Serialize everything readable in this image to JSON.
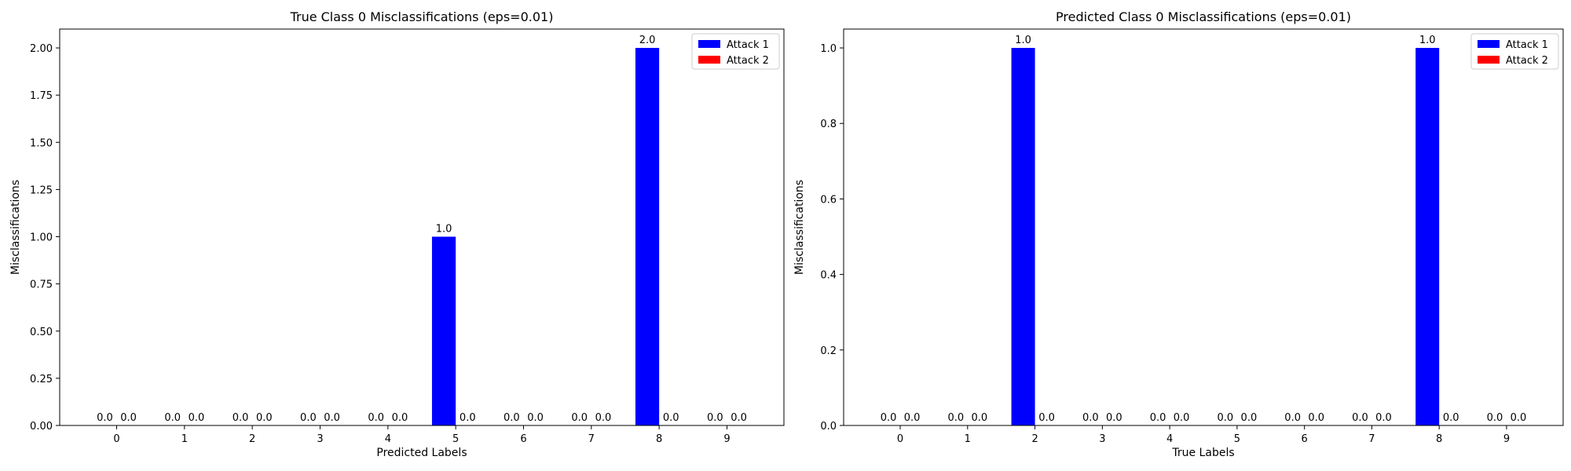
{
  "chart_data": [
    {
      "type": "bar",
      "title": "True Class 0 Misclassifications (eps=0.01)",
      "xlabel": "Predicted Labels",
      "ylabel": "Misclassifications",
      "categories": [
        "0",
        "1",
        "2",
        "3",
        "4",
        "5",
        "6",
        "7",
        "8",
        "9"
      ],
      "series": [
        {
          "name": "Attack 1",
          "color": "#0000ff",
          "values": [
            0,
            0,
            0,
            0,
            0,
            1,
            0,
            0,
            2,
            0
          ]
        },
        {
          "name": "Attack 2",
          "color": "#ff0000",
          "values": [
            0,
            0,
            0,
            0,
            0,
            0,
            0,
            0,
            0,
            0
          ]
        }
      ],
      "ylim": [
        0,
        2.1
      ],
      "yticks": [
        "0.00",
        "0.25",
        "0.50",
        "0.75",
        "1.00",
        "1.25",
        "1.50",
        "1.75",
        "2.00"
      ],
      "ytick_values": [
        0,
        0.25,
        0.5,
        0.75,
        1.0,
        1.25,
        1.5,
        1.75,
        2.0
      ],
      "legend": "top-right",
      "grid": false
    },
    {
      "type": "bar",
      "title": "Predicted Class 0 Misclassifications (eps=0.01)",
      "xlabel": "True Labels",
      "ylabel": "Misclassifications",
      "categories": [
        "0",
        "1",
        "2",
        "3",
        "4",
        "5",
        "6",
        "7",
        "8",
        "9"
      ],
      "series": [
        {
          "name": "Attack 1",
          "color": "#0000ff",
          "values": [
            0,
            0,
            1,
            0,
            0,
            0,
            0,
            0,
            1,
            0
          ]
        },
        {
          "name": "Attack 2",
          "color": "#ff0000",
          "values": [
            0,
            0,
            0,
            0,
            0,
            0,
            0,
            0,
            0,
            0
          ]
        }
      ],
      "ylim": [
        0,
        1.05
      ],
      "yticks": [
        "0.0",
        "0.2",
        "0.4",
        "0.6",
        "0.8",
        "1.0"
      ],
      "ytick_values": [
        0,
        0.2,
        0.4,
        0.6,
        0.8,
        1.0
      ],
      "legend": "top-right",
      "grid": false
    }
  ]
}
